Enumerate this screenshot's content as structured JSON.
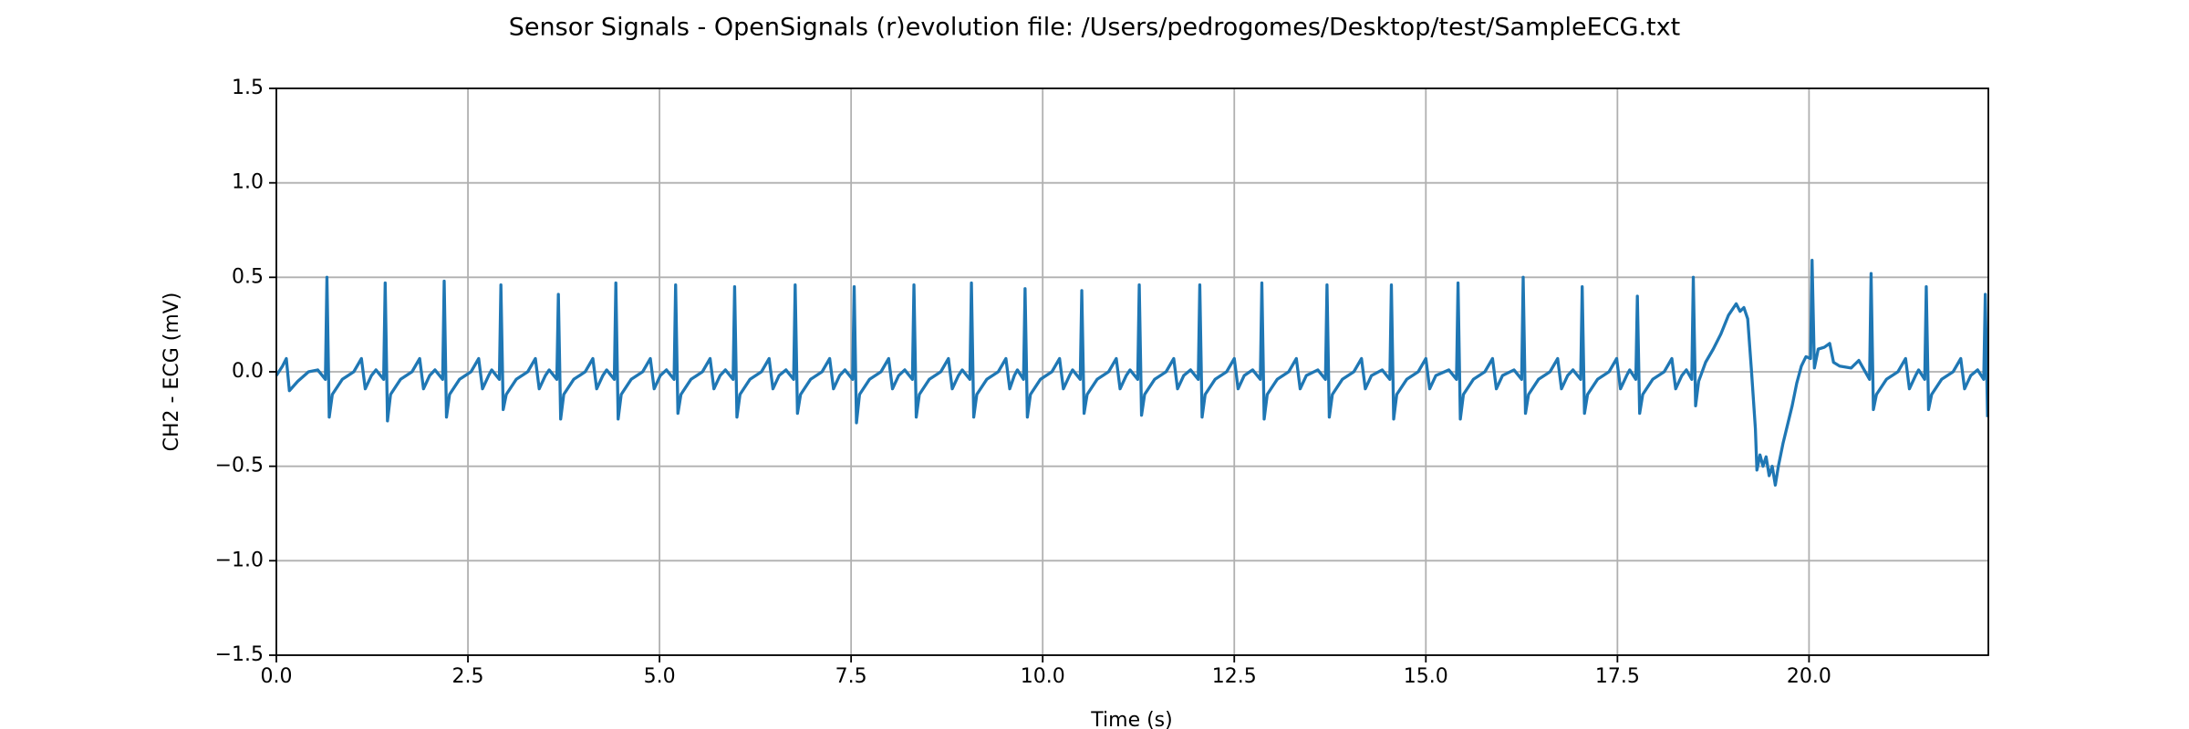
{
  "chart_data": {
    "type": "line",
    "title": "Sensor Signals - OpenSignals (r)evolution file: /Users/pedrogomes/Desktop/test/SampleECG.txt",
    "xlabel": "Time (s)",
    "ylabel": "CH2 - ECG (mV)",
    "color": "#1f77b4",
    "grid": true,
    "xlim": [
      0,
      22.34
    ],
    "ylim": [
      -1.5,
      1.5
    ],
    "xticks": [
      {
        "value": 0,
        "label": "0.0"
      },
      2.5,
      {
        "value": 5,
        "label": "5.0"
      },
      7.5,
      {
        "value": 10,
        "label": "10.0"
      },
      12.5,
      {
        "value": 15,
        "label": "15.0"
      },
      17.5,
      {
        "value": 20,
        "label": "20.0"
      }
    ],
    "yticks": [
      {
        "value": -1.5,
        "label": "−1.5"
      },
      {
        "value": -1,
        "label": "−1.0"
      },
      {
        "value": -0.5,
        "label": "−0.5"
      },
      {
        "value": 0,
        "label": "0.0"
      },
      0.5,
      {
        "value": 1,
        "label": "1.0"
      },
      1.5
    ],
    "x": [
      0.0,
      0.08,
      0.13,
      0.17,
      0.28,
      0.42,
      0.54,
      0.64,
      0.66,
      0.69,
      0.73,
      0.86,
      1.01,
      1.11,
      1.16,
      1.24,
      1.3,
      1.4,
      1.42,
      1.45,
      1.49,
      1.62,
      1.77,
      1.87,
      1.92,
      2.0,
      2.07,
      2.17,
      2.19,
      2.22,
      2.26,
      2.39,
      2.54,
      2.64,
      2.69,
      2.77,
      2.81,
      2.91,
      2.93,
      2.96,
      3.0,
      3.13,
      3.28,
      3.38,
      3.43,
      3.51,
      3.56,
      3.66,
      3.68,
      3.71,
      3.75,
      3.88,
      4.03,
      4.13,
      4.18,
      4.26,
      4.31,
      4.41,
      4.43,
      4.46,
      4.5,
      4.63,
      4.78,
      4.88,
      4.93,
      5.01,
      5.09,
      5.19,
      5.21,
      5.24,
      5.28,
      5.41,
      5.56,
      5.66,
      5.71,
      5.79,
      5.86,
      5.96,
      5.98,
      6.01,
      6.05,
      6.18,
      6.33,
      6.43,
      6.48,
      6.56,
      6.65,
      6.75,
      6.77,
      6.8,
      6.84,
      6.97,
      7.12,
      7.22,
      7.27,
      7.35,
      7.42,
      7.52,
      7.54,
      7.57,
      7.61,
      7.74,
      7.89,
      7.99,
      8.04,
      8.12,
      8.2,
      8.3,
      8.32,
      8.35,
      8.39,
      8.52,
      8.67,
      8.77,
      8.82,
      8.9,
      8.95,
      9.05,
      9.07,
      9.1,
      9.14,
      9.27,
      9.42,
      9.52,
      9.57,
      9.63,
      9.67,
      9.75,
      9.77,
      9.8,
      9.84,
      9.97,
      10.12,
      10.22,
      10.27,
      10.35,
      10.39,
      10.49,
      10.51,
      10.54,
      10.58,
      10.71,
      10.86,
      10.96,
      11.01,
      11.09,
      11.14,
      11.24,
      11.26,
      11.29,
      11.33,
      11.46,
      11.61,
      11.71,
      11.76,
      11.84,
      11.93,
      12.03,
      12.05,
      12.08,
      12.12,
      12.25,
      12.4,
      12.5,
      12.55,
      12.63,
      12.74,
      12.84,
      12.86,
      12.89,
      12.93,
      13.06,
      13.21,
      13.31,
      13.36,
      13.44,
      13.59,
      13.69,
      13.71,
      13.74,
      13.78,
      13.91,
      14.06,
      14.16,
      14.21,
      14.29,
      14.43,
      14.53,
      14.55,
      14.58,
      14.62,
      14.75,
      14.9,
      15.0,
      15.05,
      15.13,
      15.3,
      15.4,
      15.42,
      15.45,
      15.49,
      15.62,
      15.77,
      15.87,
      15.92,
      16.0,
      16.15,
      16.25,
      16.27,
      16.3,
      16.34,
      16.47,
      16.62,
      16.72,
      16.77,
      16.85,
      16.92,
      17.02,
      17.04,
      17.07,
      17.11,
      17.24,
      17.39,
      17.49,
      17.54,
      17.62,
      17.66,
      17.74,
      17.76,
      17.79,
      17.83,
      17.96,
      18.11,
      18.21,
      18.26,
      18.34,
      18.4,
      18.47,
      18.49,
      18.52,
      18.56,
      18.65,
      18.75,
      18.85,
      18.95,
      19.0,
      19.05,
      19.1,
      19.15,
      19.2,
      19.25,
      19.3,
      19.32,
      19.36,
      19.4,
      19.44,
      19.48,
      19.52,
      19.56,
      19.6,
      19.66,
      19.72,
      19.78,
      19.84,
      19.9,
      19.96,
      20.02,
      20.04,
      20.07,
      20.12,
      20.2,
      20.27,
      20.32,
      20.4,
      20.55,
      20.65,
      20.72,
      20.79,
      20.81,
      20.84,
      20.88,
      21.01,
      21.16,
      21.26,
      21.31,
      21.39,
      21.43,
      21.51,
      21.53,
      21.56,
      21.6,
      21.73,
      21.88,
      21.98,
      22.03,
      22.11,
      22.2,
      22.28,
      22.3,
      22.33
    ],
    "values": [
      -0.02,
      0.03,
      0.07,
      -0.1,
      -0.05,
      0.0,
      0.01,
      -0.04,
      0.5,
      -0.24,
      -0.12,
      -0.04,
      0.0,
      0.07,
      -0.09,
      -0.02,
      0.01,
      -0.04,
      0.47,
      -0.26,
      -0.12,
      -0.04,
      0.0,
      0.07,
      -0.09,
      -0.02,
      0.01,
      -0.04,
      0.48,
      -0.24,
      -0.12,
      -0.04,
      0.0,
      0.07,
      -0.09,
      -0.02,
      0.01,
      -0.04,
      0.46,
      -0.2,
      -0.12,
      -0.04,
      0.0,
      0.07,
      -0.09,
      -0.02,
      0.01,
      -0.04,
      0.41,
      -0.25,
      -0.12,
      -0.04,
      0.0,
      0.07,
      -0.09,
      -0.02,
      0.01,
      -0.04,
      0.47,
      -0.25,
      -0.12,
      -0.04,
      0.0,
      0.07,
      -0.09,
      -0.02,
      0.01,
      -0.04,
      0.46,
      -0.22,
      -0.12,
      -0.04,
      0.0,
      0.07,
      -0.09,
      -0.02,
      0.01,
      -0.04,
      0.45,
      -0.24,
      -0.12,
      -0.04,
      0.0,
      0.07,
      -0.09,
      -0.02,
      0.01,
      -0.04,
      0.46,
      -0.22,
      -0.12,
      -0.04,
      0.0,
      0.07,
      -0.09,
      -0.02,
      0.01,
      -0.04,
      0.45,
      -0.27,
      -0.12,
      -0.04,
      0.0,
      0.07,
      -0.09,
      -0.02,
      0.01,
      -0.04,
      0.46,
      -0.24,
      -0.12,
      -0.04,
      0.0,
      0.07,
      -0.09,
      -0.02,
      0.01,
      -0.04,
      0.47,
      -0.24,
      -0.12,
      -0.04,
      0.0,
      0.07,
      -0.09,
      -0.02,
      0.01,
      -0.04,
      0.44,
      -0.24,
      -0.12,
      -0.04,
      0.0,
      0.07,
      -0.09,
      -0.02,
      0.01,
      -0.04,
      0.43,
      -0.22,
      -0.12,
      -0.04,
      0.0,
      0.07,
      -0.09,
      -0.02,
      0.01,
      -0.04,
      0.46,
      -0.23,
      -0.12,
      -0.04,
      0.0,
      0.07,
      -0.09,
      -0.02,
      0.01,
      -0.04,
      0.46,
      -0.24,
      -0.12,
      -0.04,
      0.0,
      0.07,
      -0.09,
      -0.02,
      0.01,
      -0.04,
      0.47,
      -0.25,
      -0.12,
      -0.04,
      0.0,
      0.07,
      -0.09,
      -0.02,
      0.01,
      -0.04,
      0.46,
      -0.24,
      -0.12,
      -0.04,
      0.0,
      0.07,
      -0.09,
      -0.02,
      0.01,
      -0.04,
      0.46,
      -0.25,
      -0.12,
      -0.04,
      0.0,
      0.07,
      -0.09,
      -0.02,
      0.01,
      -0.04,
      0.47,
      -0.25,
      -0.12,
      -0.04,
      0.0,
      0.07,
      -0.09,
      -0.02,
      0.01,
      -0.04,
      0.5,
      -0.22,
      -0.12,
      -0.04,
      0.0,
      0.07,
      -0.09,
      -0.02,
      0.01,
      -0.04,
      0.45,
      -0.22,
      -0.12,
      -0.04,
      0.0,
      0.07,
      -0.09,
      -0.02,
      0.01,
      -0.04,
      0.4,
      -0.22,
      -0.12,
      -0.04,
      0.0,
      0.07,
      -0.09,
      -0.02,
      0.01,
      -0.04,
      0.5,
      -0.18,
      -0.05,
      0.05,
      0.12,
      0.2,
      0.3,
      0.33,
      0.36,
      0.32,
      0.34,
      0.28,
      0.0,
      -0.3,
      -0.52,
      -0.44,
      -0.5,
      -0.45,
      -0.55,
      -0.5,
      -0.6,
      -0.5,
      -0.38,
      -0.28,
      -0.18,
      -0.06,
      0.03,
      0.08,
      0.07,
      0.59,
      0.02,
      0.12,
      0.13,
      0.15,
      0.05,
      0.03,
      0.02,
      0.06,
      0.01,
      -0.04,
      0.52,
      -0.2,
      -0.12,
      -0.04,
      0.0,
      0.07,
      -0.09,
      -0.02,
      0.01,
      -0.04,
      0.45,
      -0.2,
      -0.12,
      -0.04,
      0.0,
      0.07,
      -0.09,
      -0.02,
      0.01,
      -0.04,
      0.41,
      -0.24
    ]
  }
}
